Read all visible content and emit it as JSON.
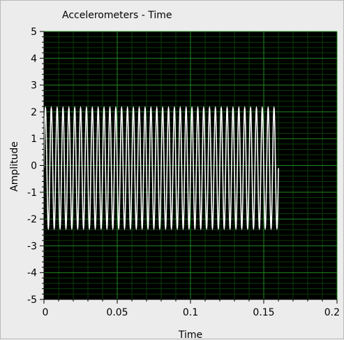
{
  "colors": {
    "plot_background": "#000000",
    "major_grid": "#1f8a1f",
    "minor_grid": "#0a3d0a",
    "trace": "#ffffff",
    "panel_background": "#ececec"
  },
  "chart_data": {
    "type": "line",
    "title": "Accelerometers - Time",
    "xlabel": "Time",
    "ylabel": "Amplitude",
    "xlim": [
      0,
      0.2
    ],
    "ylim": [
      -5,
      5
    ],
    "x_ticks": [
      0,
      0.05,
      0.1,
      0.15,
      0.2
    ],
    "x_tick_labels": [
      "0",
      "0.05",
      "0.1",
      "0.15",
      "0.2"
    ],
    "y_ticks": [
      5,
      4,
      3,
      2,
      1,
      0,
      -1,
      -2,
      -3,
      -4,
      -5
    ],
    "y_tick_labels": [
      "5",
      "4",
      "3",
      "2",
      "1",
      "0",
      "-1",
      "-2",
      "-3",
      "-4",
      "-5"
    ],
    "grid": true,
    "minor_divisions": 5,
    "series": [
      {
        "signal": "sine",
        "x_start": 0,
        "x_end": 0.16,
        "frequency_hz": 250,
        "amplitude": 2.25,
        "offset": -0.1
      }
    ]
  }
}
